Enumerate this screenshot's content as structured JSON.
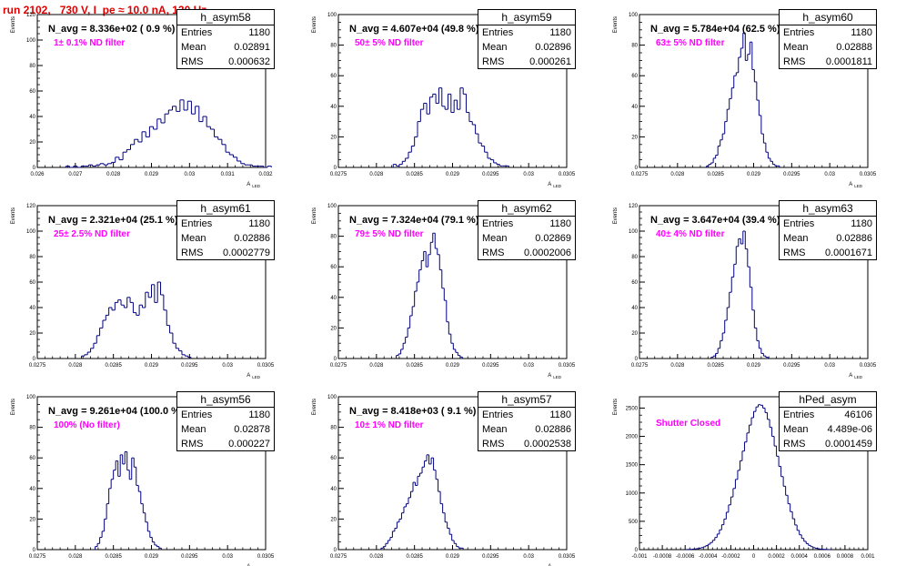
{
  "title": "run 2102,   730 V, I_pe ≈ 10.0 nA, 120 Hz",
  "stat_labels": {
    "entries": "Entries",
    "mean": "Mean",
    "rms": "RMS"
  },
  "colors": {
    "histogram": "#00007f",
    "title": "#e00000",
    "annotation": "#ff00ff"
  },
  "chart_data": [
    {
      "type": "bar",
      "name": "h_asym58",
      "navg": "N_avg = 8.336e+02 ( 0.9 %)",
      "filter": "1± 0.1% ND filter",
      "stats": {
        "entries": "1180",
        "mean": "0.02891",
        "rms": "0.000632"
      },
      "ylabel": "Events",
      "xlabel": "A_LED",
      "xlim": [
        0.026,
        0.032
      ],
      "ylim": [
        0,
        120
      ],
      "xticks": [
        0.026,
        0.027,
        0.028,
        0.029,
        0.03,
        0.031,
        0.032
      ],
      "xtick_labels": [
        "0.026",
        "0.027",
        "0.028",
        "0.029",
        "0.03",
        "0.031",
        "0.032"
      ],
      "yticks": [
        0,
        20,
        40,
        60,
        80,
        100,
        120
      ],
      "ytick_labels": [
        "0",
        "20",
        "40",
        "60",
        "80",
        "100",
        "120"
      ],
      "bins": {
        "start": 0.02675,
        "width": 0.0001,
        "values": [
          1,
          0,
          1,
          0,
          1,
          1,
          2,
          1,
          2,
          3,
          2,
          3,
          4,
          8,
          6,
          12,
          14,
          18,
          22,
          20,
          28,
          24,
          32,
          30,
          38,
          35,
          42,
          45,
          48,
          44,
          53,
          45,
          52,
          42,
          48,
          36,
          40,
          32,
          30,
          24,
          22,
          18,
          12,
          10,
          8,
          5,
          3,
          2,
          2,
          1,
          1,
          1,
          0,
          1
        ]
      }
    },
    {
      "type": "bar",
      "name": "h_asym59",
      "navg": "N_avg = 4.607e+04 (49.8 %)",
      "filter": "50± 5% ND filter",
      "stats": {
        "entries": "1180",
        "mean": "0.02896",
        "rms": "0.000261"
      },
      "ylabel": "Events",
      "xlabel": "A_LED",
      "xlim": [
        0.0275,
        0.0305
      ],
      "ylim": [
        0,
        100
      ],
      "xticks": [
        0.0275,
        0.028,
        0.0285,
        0.029,
        0.0295,
        0.03,
        0.0305
      ],
      "xtick_labels": [
        "0.0275",
        "0.028",
        "0.0285",
        "0.029",
        "0.0295",
        "0.03",
        "0.0305"
      ],
      "yticks": [
        0,
        20,
        40,
        60,
        80,
        100
      ],
      "ytick_labels": [
        "0",
        "20",
        "40",
        "60",
        "80",
        "100"
      ],
      "bins": {
        "start": 0.02822,
        "width": 4e-05,
        "values": [
          2,
          1,
          2,
          4,
          6,
          10,
          14,
          20,
          30,
          38,
          42,
          35,
          46,
          48,
          42,
          52,
          40,
          38,
          48,
          36,
          44,
          38,
          52,
          48,
          36,
          30,
          28,
          22,
          16,
          14,
          10,
          6,
          5,
          3,
          2,
          1,
          1,
          1
        ]
      }
    },
    {
      "type": "bar",
      "name": "h_asym60",
      "navg": "N_avg = 5.784e+04 (62.5 %)",
      "filter": "63± 5% ND filter",
      "stats": {
        "entries": "1180",
        "mean": "0.02888",
        "rms": "0.0001811"
      },
      "ylabel": "Events",
      "xlabel": "A_LED",
      "xlim": [
        0.0275,
        0.0305
      ],
      "ylim": [
        0,
        100
      ],
      "xticks": [
        0.0275,
        0.028,
        0.0285,
        0.029,
        0.0295,
        0.03,
        0.0305
      ],
      "xtick_labels": [
        "0.0275",
        "0.028",
        "0.0285",
        "0.029",
        "0.0295",
        "0.03",
        "0.0305"
      ],
      "yticks": [
        0,
        20,
        40,
        60,
        80,
        100
      ],
      "ytick_labels": [
        "0",
        "20",
        "40",
        "60",
        "80",
        "100"
      ],
      "bins": {
        "start": 0.02838,
        "width": 3e-05,
        "values": [
          1,
          2,
          3,
          6,
          8,
          14,
          18,
          22,
          30,
          38,
          45,
          52,
          60,
          62,
          72,
          78,
          88,
          70,
          74,
          82,
          64,
          56,
          44,
          34,
          22,
          16,
          10,
          6,
          4,
          2,
          1,
          1
        ]
      }
    },
    {
      "type": "bar",
      "name": "h_asym61",
      "navg": "N_avg = 2.321e+04 (25.1 %)",
      "filter": "25± 2.5% ND filter",
      "stats": {
        "entries": "1180",
        "mean": "0.02886",
        "rms": "0.0002779"
      },
      "ylabel": "Events",
      "xlabel": "A_LED",
      "xlim": [
        0.0275,
        0.0305
      ],
      "ylim": [
        0,
        120
      ],
      "xticks": [
        0.0275,
        0.028,
        0.0285,
        0.029,
        0.0295,
        0.03,
        0.0305
      ],
      "xtick_labels": [
        "0.0275",
        "0.028",
        "0.0285",
        "0.029",
        "0.0295",
        "0.03",
        "0.0305"
      ],
      "yticks": [
        0,
        20,
        40,
        60,
        80,
        100,
        120
      ],
      "ytick_labels": [
        "0",
        "20",
        "40",
        "60",
        "80",
        "100",
        "120"
      ],
      "bins": {
        "start": 0.02808,
        "width": 4e-05,
        "values": [
          2,
          3,
          5,
          8,
          12,
          18,
          24,
          30,
          34,
          40,
          38,
          44,
          46,
          42,
          40,
          48,
          44,
          36,
          34,
          42,
          40,
          52,
          48,
          58,
          44,
          60,
          50,
          38,
          26,
          20,
          12,
          8,
          6,
          3,
          2,
          1
        ]
      }
    },
    {
      "type": "bar",
      "name": "h_asym62",
      "navg": "N_avg = 7.324e+04 (79.1 %)",
      "filter": "79± 5% ND filter",
      "stats": {
        "entries": "1180",
        "mean": "0.02869",
        "rms": "0.0002006"
      },
      "ylabel": "Events",
      "xlabel": "A_LED",
      "xlim": [
        0.0275,
        0.0305
      ],
      "ylim": [
        0,
        100
      ],
      "xticks": [
        0.0275,
        0.028,
        0.0285,
        0.029,
        0.0295,
        0.03,
        0.0305
      ],
      "xtick_labels": [
        "0.0275",
        "0.028",
        "0.0285",
        "0.029",
        "0.0295",
        "0.03",
        "0.0305"
      ],
      "yticks": [
        0,
        20,
        40,
        60,
        80,
        100
      ],
      "ytick_labels": [
        "0",
        "20",
        "40",
        "60",
        "80",
        "100"
      ],
      "bins": {
        "start": 0.02826,
        "width": 3e-05,
        "values": [
          2,
          3,
          6,
          10,
          14,
          20,
          28,
          34,
          44,
          50,
          58,
          64,
          70,
          60,
          68,
          76,
          82,
          72,
          68,
          58,
          46,
          38,
          24,
          16,
          10,
          6,
          4,
          2,
          1
        ]
      }
    },
    {
      "type": "bar",
      "name": "h_asym63",
      "navg": "N_avg = 3.647e+04 (39.4 %)",
      "filter": "40± 4% ND filter",
      "stats": {
        "entries": "1180",
        "mean": "0.02886",
        "rms": "0.0001671"
      },
      "ylabel": "Events",
      "xlabel": "A_LED",
      "xlim": [
        0.0275,
        0.0305
      ],
      "ylim": [
        0,
        120
      ],
      "xticks": [
        0.0275,
        0.028,
        0.0285,
        0.029,
        0.0295,
        0.03,
        0.0305
      ],
      "xtick_labels": [
        "0.0275",
        "0.028",
        "0.0285",
        "0.029",
        "0.0295",
        "0.03",
        "0.0305"
      ],
      "yticks": [
        0,
        20,
        40,
        60,
        80,
        100,
        120
      ],
      "ytick_labels": [
        "0",
        "20",
        "40",
        "60",
        "80",
        "100",
        "120"
      ],
      "bins": {
        "start": 0.02844,
        "width": 3e-05,
        "values": [
          1,
          2,
          4,
          8,
          14,
          20,
          30,
          40,
          52,
          64,
          74,
          88,
          94,
          90,
          100,
          86,
          72,
          56,
          38,
          24,
          14,
          8,
          4,
          2,
          1
        ]
      }
    },
    {
      "type": "bar",
      "name": "h_asym56",
      "navg": "N_avg = 9.261e+04 (100.0 %)",
      "filter": "100% (No filter)",
      "stats": {
        "entries": "1180",
        "mean": "0.02878",
        "rms": "0.000227"
      },
      "ylabel": "Events",
      "xlabel": "A_LED",
      "xlim": [
        0.0275,
        0.0305
      ],
      "ylim": [
        0,
        100
      ],
      "xticks": [
        0.0275,
        0.028,
        0.0285,
        0.029,
        0.0295,
        0.03,
        0.0305
      ],
      "xtick_labels": [
        "0.0275",
        "0.028",
        "0.0285",
        "0.029",
        "0.0295",
        "0.03",
        "0.0305"
      ],
      "yticks": [
        0,
        20,
        40,
        60,
        80,
        100
      ],
      "ytick_labels": [
        "0",
        "20",
        "40",
        "60",
        "80",
        "100"
      ],
      "bins": {
        "start": 0.02826,
        "width": 3e-05,
        "values": [
          2,
          4,
          8,
          12,
          20,
          30,
          40,
          46,
          52,
          58,
          48,
          62,
          56,
          64,
          52,
          46,
          60,
          54,
          42,
          38,
          30,
          24,
          18,
          12,
          8,
          5,
          3,
          2,
          1
        ]
      }
    },
    {
      "type": "bar",
      "name": "h_asym57",
      "navg": "N_avg = 8.418e+03 ( 9.1 %)",
      "filter": "10± 1% ND filter",
      "stats": {
        "entries": "1180",
        "mean": "0.02886",
        "rms": "0.0002538"
      },
      "ylabel": "Events",
      "xlabel": "A_LED",
      "xlim": [
        0.0275,
        0.0305
      ],
      "ylim": [
        0,
        100
      ],
      "xticks": [
        0.0275,
        0.028,
        0.0285,
        0.029,
        0.0295,
        0.03,
        0.0305
      ],
      "xtick_labels": [
        "0.0275",
        "0.028",
        "0.0285",
        "0.029",
        "0.0295",
        "0.03",
        "0.0305"
      ],
      "yticks": [
        0,
        20,
        40,
        60,
        80,
        100
      ],
      "ytick_labels": [
        "0",
        "20",
        "40",
        "60",
        "80",
        "100"
      ],
      "bins": {
        "start": 0.02806,
        "width": 3e-05,
        "values": [
          1,
          2,
          4,
          6,
          8,
          12,
          14,
          18,
          20,
          24,
          28,
          30,
          34,
          38,
          44,
          42,
          48,
          50,
          54,
          58,
          62,
          56,
          60,
          52,
          46,
          38,
          30,
          24,
          18,
          14,
          10,
          6,
          4,
          2,
          1,
          1
        ]
      }
    },
    {
      "type": "bar",
      "name": "hPed_asym",
      "navg": "",
      "filter": "Shutter Closed",
      "stats": {
        "entries": "46106",
        "mean": "4.489e-06",
        "rms": "0.0001459"
      },
      "ylabel": "Events",
      "xlabel": "",
      "xlim": [
        -0.001,
        0.001
      ],
      "ylim": [
        0,
        2700
      ],
      "xticks": [
        -0.001,
        -0.0008,
        -0.0006,
        -0.0004,
        -0.0002,
        0,
        0.0002,
        0.0004,
        0.0006,
        0.0008,
        0.001
      ],
      "xtick_labels": [
        "-0.001",
        "-0.0008",
        "-0.0006",
        "-0.0004",
        "-0.0002",
        "0",
        "0.0002",
        "0.0004",
        "0.0006",
        "0.0008",
        "0.001"
      ],
      "yticks": [
        0,
        500,
        1000,
        1500,
        2000,
        2500
      ],
      "ytick_labels": [
        "0",
        "500",
        "1000",
        "1500",
        "2000",
        "2500"
      ],
      "bins": {
        "start": -0.0006,
        "width": 2e-05,
        "values": [
          2,
          3,
          5,
          8,
          12,
          18,
          26,
          36,
          50,
          70,
          95,
          125,
          165,
          215,
          275,
          350,
          440,
          540,
          660,
          790,
          930,
          1080,
          1240,
          1400,
          1570,
          1740,
          1900,
          2060,
          2200,
          2330,
          2440,
          2520,
          2560,
          2550,
          2500,
          2420,
          2300,
          2160,
          2000,
          1830,
          1650,
          1470,
          1290,
          1120,
          960,
          810,
          670,
          545,
          435,
          340,
          262,
          198,
          146,
          106,
          75,
          52,
          35,
          23,
          15,
          10,
          6,
          4,
          2,
          1
        ]
      }
    }
  ]
}
